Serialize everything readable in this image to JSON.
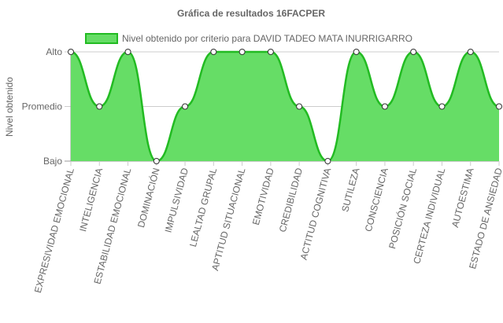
{
  "chart_data": {
    "type": "area",
    "title": "Gráfica de resultados 16FACPER",
    "ylabel": "Nivel obtenido",
    "xlabel": "",
    "y_categories": [
      "Bajo",
      "Promedio",
      "Alto"
    ],
    "categories": [
      "EXPRESIVIDAD EMOCIONAL",
      "INTELIGENCIA",
      "ESTABILIDAD EMOCIONAL",
      "DOMINACIÓN",
      "IMPULSIVIDAD",
      "LEALTAD GRUPAL",
      "APTITUD SITUACIONAL",
      "EMOTIVIDAD",
      "CREDIBILIDAD",
      "ACTITUD COGNITIVA",
      "SUTILEZA",
      "CONSCIENCIA",
      "POSICIÓN SOCIAL",
      "CERTEZA INDIVIDUAL",
      "AUTOESTIMA",
      "ESTADO DE ANSIEDAD"
    ],
    "series": [
      {
        "name": "Nivel obtenido por criterio para DAVID TADEO MATA INURRIGARRO",
        "values": [
          "Alto",
          "Promedio",
          "Alto",
          "Bajo",
          "Promedio",
          "Alto",
          "Alto",
          "Alto",
          "Promedio",
          "Bajo",
          "Alto",
          "Promedio",
          "Alto",
          "Promedio",
          "Alto",
          "Promedio"
        ]
      }
    ],
    "grid": true,
    "legend_position": "top",
    "colors": {
      "fill": "#66dd66",
      "line": "#22bb22",
      "grid": "#cccccc",
      "axis": "#999999",
      "text": "#666666"
    }
  }
}
